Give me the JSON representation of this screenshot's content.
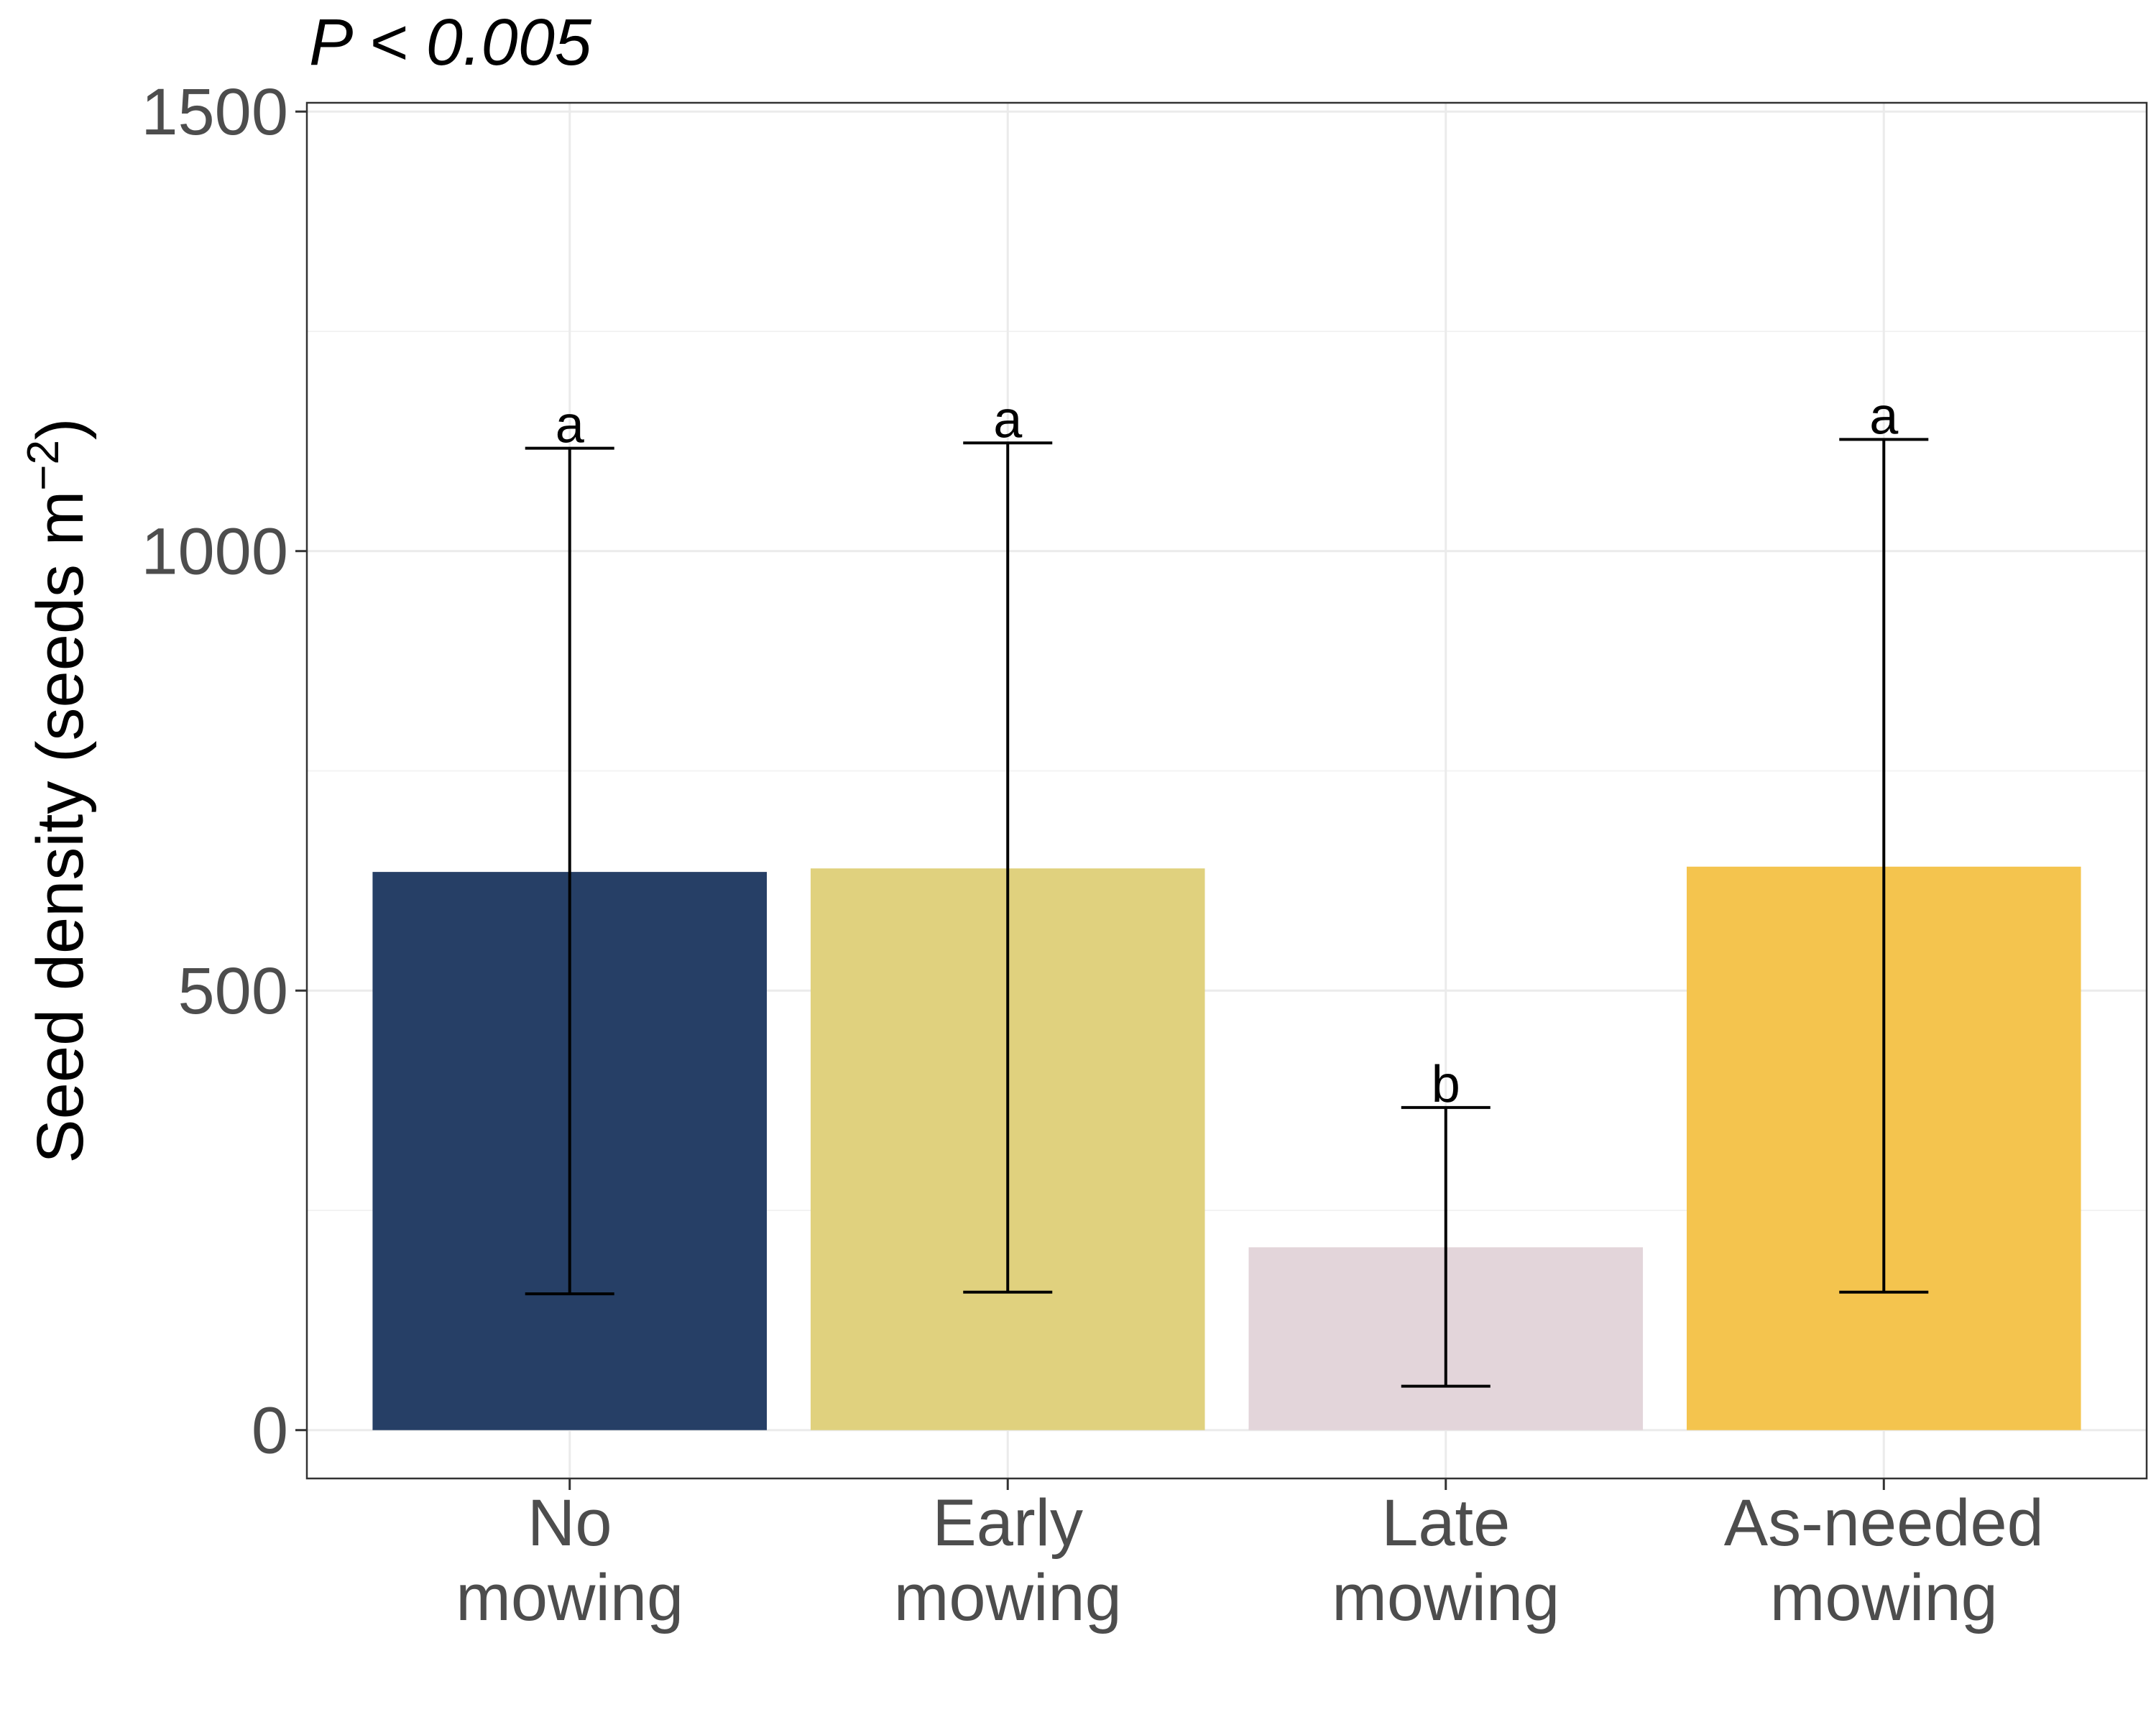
{
  "chart_data": {
    "type": "bar",
    "title": "P < 0.005",
    "categories": [
      [
        "No",
        "mowing"
      ],
      [
        "Early",
        "mowing"
      ],
      [
        "Late",
        "mowing"
      ],
      [
        "As-needed",
        "mowing"
      ]
    ],
    "values": [
      635,
      639,
      208,
      641
    ],
    "error_low": [
      155,
      157,
      50,
      157
    ],
    "error_high": [
      1117,
      1123,
      367,
      1127
    ],
    "significance_letters": [
      "a",
      "a",
      "b",
      "a"
    ],
    "colors": [
      "#263f66",
      "#e0d17e",
      "#e3d5da",
      "#f4c44e"
    ],
    "xlabel": "",
    "ylabel": {
      "main": "Seed density (seeds m",
      "superscript": "−2",
      "close": ")"
    },
    "ylim": [
      -55,
      1510
    ],
    "yticks": [
      0,
      500,
      1000,
      1500
    ],
    "grid": true,
    "legend": "none"
  }
}
